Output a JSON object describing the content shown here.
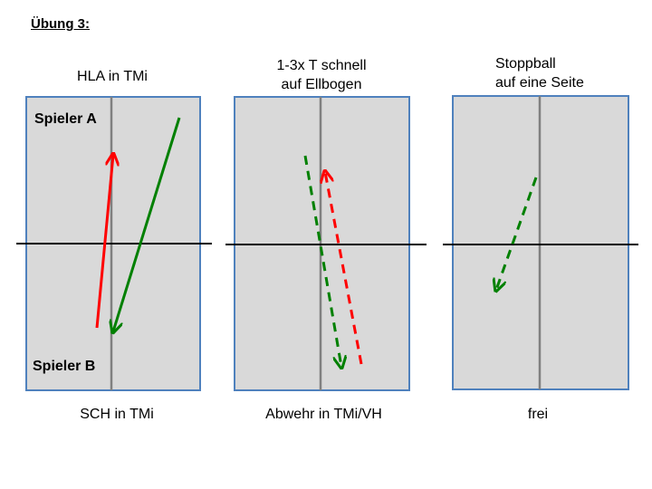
{
  "title": "Übung 3:",
  "colors": {
    "table_fill": "#d9d9d9",
    "table_border": "#4f81bd",
    "net_line": "#000000",
    "center_line": "#808080",
    "attack_arrow": "#ff0000",
    "return_arrow": "#008000"
  },
  "panels": [
    {
      "top_lines": [
        "HLA in TMi"
      ],
      "bottom_label": "SCH in TMi",
      "player_top": "Spieler A",
      "player_bottom": "Spieler B"
    },
    {
      "top_lines": [
        "1-3x T schnell",
        "auf Ellbogen"
      ],
      "bottom_label": "Abwehr in TMi/VH"
    },
    {
      "top_lines": [
        "Stoppball",
        "auf eine Seite"
      ],
      "bottom_label": "frei"
    }
  ]
}
